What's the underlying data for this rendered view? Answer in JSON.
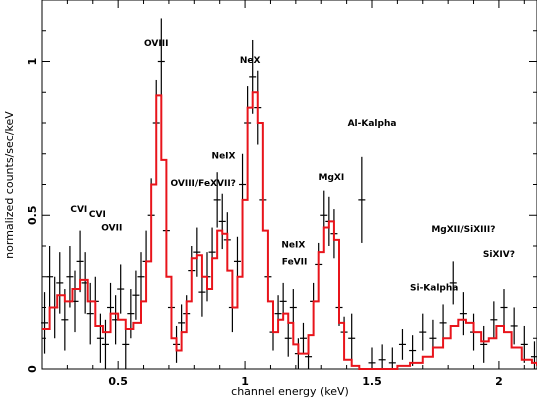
{
  "chart_data": {
    "type": "line",
    "xlabel": "channel energy (keV)",
    "ylabel": "normalized counts/sec/keV",
    "xlim": [
      0.2,
      2.15
    ],
    "ylim": [
      0,
      1.2
    ],
    "x_ticks": [
      0.5,
      1,
      1.5,
      2
    ],
    "x_tick_labels": [
      "0.5",
      "1",
      "1.5",
      "2"
    ],
    "y_ticks": [
      0,
      0.5,
      1
    ],
    "y_tick_labels": [
      "0",
      "0.5",
      "1"
    ],
    "colors": {
      "model": "#e8141b",
      "data": "#000000"
    },
    "annotations": [
      {
        "text": "CVI",
        "x": 0.345,
        "y": 0.51
      },
      {
        "text": "CVI",
        "x": 0.418,
        "y": 0.495
      },
      {
        "text": "OVII",
        "x": 0.475,
        "y": 0.45
      },
      {
        "text": "OVIII",
        "x": 0.65,
        "y": 1.05
      },
      {
        "text": "OVIII/FeXVII?",
        "x": 0.835,
        "y": 0.595
      },
      {
        "text": "NeIX",
        "x": 0.915,
        "y": 0.685
      },
      {
        "text": "NeX",
        "x": 1.02,
        "y": 0.995
      },
      {
        "text": "NeIX",
        "x": 1.19,
        "y": 0.395
      },
      {
        "text": "FeVII",
        "x": 1.195,
        "y": 0.34
      },
      {
        "text": "MgXI",
        "x": 1.34,
        "y": 0.615
      },
      {
        "text": "Al-Kalpha",
        "x": 1.5,
        "y": 0.79
      },
      {
        "text": "Si-Kalpha",
        "x": 1.745,
        "y": 0.255
      },
      {
        "text": "MgXII/SiXIII?",
        "x": 1.86,
        "y": 0.445
      },
      {
        "text": "SiXIV?",
        "x": 2.0,
        "y": 0.365
      }
    ],
    "model_x": [
      0.2,
      0.23,
      0.26,
      0.29,
      0.32,
      0.35,
      0.38,
      0.41,
      0.44,
      0.47,
      0.5,
      0.53,
      0.56,
      0.59,
      0.61,
      0.63,
      0.65,
      0.67,
      0.69,
      0.71,
      0.73,
      0.75,
      0.77,
      0.79,
      0.81,
      0.83,
      0.85,
      0.87,
      0.89,
      0.91,
      0.93,
      0.95,
      0.97,
      0.99,
      1.01,
      1.03,
      1.05,
      1.07,
      1.09,
      1.11,
      1.13,
      1.15,
      1.17,
      1.19,
      1.21,
      1.23,
      1.25,
      1.27,
      1.29,
      1.31,
      1.33,
      1.35,
      1.37,
      1.39,
      1.42,
      1.45,
      1.5,
      1.55,
      1.6,
      1.65,
      1.7,
      1.74,
      1.78,
      1.81,
      1.84,
      1.87,
      1.9,
      1.93,
      1.96,
      1.99,
      2.02,
      2.05,
      2.09,
      2.13,
      2.15
    ],
    "model_y": [
      0.13,
      0.2,
      0.24,
      0.22,
      0.26,
      0.29,
      0.22,
      0.14,
      0.12,
      0.18,
      0.16,
      0.13,
      0.15,
      0.22,
      0.35,
      0.6,
      0.89,
      0.68,
      0.3,
      0.1,
      0.06,
      0.12,
      0.22,
      0.36,
      0.37,
      0.3,
      0.26,
      0.36,
      0.45,
      0.44,
      0.32,
      0.2,
      0.3,
      0.55,
      0.85,
      0.9,
      0.8,
      0.45,
      0.22,
      0.12,
      0.16,
      0.18,
      0.15,
      0.08,
      0.05,
      0.05,
      0.11,
      0.22,
      0.38,
      0.46,
      0.48,
      0.42,
      0.15,
      0.03,
      0.01,
      0.0,
      0.0,
      0.0,
      0.01,
      0.02,
      0.04,
      0.07,
      0.1,
      0.14,
      0.16,
      0.15,
      0.12,
      0.09,
      0.1,
      0.14,
      0.12,
      0.07,
      0.03,
      0.02,
      0.01
    ],
    "data_x": [
      0.21,
      0.23,
      0.25,
      0.27,
      0.29,
      0.31,
      0.33,
      0.35,
      0.37,
      0.39,
      0.41,
      0.43,
      0.45,
      0.47,
      0.49,
      0.51,
      0.53,
      0.55,
      0.57,
      0.59,
      0.61,
      0.63,
      0.65,
      0.67,
      0.69,
      0.71,
      0.73,
      0.75,
      0.77,
      0.79,
      0.81,
      0.83,
      0.85,
      0.87,
      0.89,
      0.91,
      0.93,
      0.95,
      0.97,
      0.99,
      1.01,
      1.03,
      1.05,
      1.07,
      1.09,
      1.11,
      1.13,
      1.15,
      1.17,
      1.19,
      1.21,
      1.23,
      1.25,
      1.27,
      1.29,
      1.31,
      1.33,
      1.35,
      1.37,
      1.39,
      1.42,
      1.46,
      1.5,
      1.54,
      1.58,
      1.62,
      1.66,
      1.7,
      1.74,
      1.78,
      1.82,
      1.86,
      1.9,
      1.94,
      1.98,
      2.02,
      2.06,
      2.1,
      2.14
    ],
    "data_y": [
      0.15,
      0.3,
      0.2,
      0.28,
      0.16,
      0.3,
      0.22,
      0.35,
      0.28,
      0.18,
      0.22,
      0.1,
      0.08,
      0.2,
      0.16,
      0.26,
      0.08,
      0.18,
      0.24,
      0.3,
      0.35,
      0.5,
      0.8,
      1.0,
      0.45,
      0.2,
      0.08,
      0.15,
      0.18,
      0.32,
      0.38,
      0.25,
      0.3,
      0.38,
      0.55,
      0.48,
      0.42,
      0.2,
      0.35,
      0.6,
      0.8,
      0.95,
      0.85,
      0.55,
      0.3,
      0.12,
      0.18,
      0.22,
      0.1,
      0.2,
      0.05,
      0.1,
      0.04,
      0.22,
      0.34,
      0.5,
      0.48,
      0.44,
      0.2,
      0.12,
      0.1,
      0.55,
      0.02,
      0.03,
      0.02,
      0.08,
      0.06,
      0.12,
      0.1,
      0.15,
      0.28,
      0.18,
      0.12,
      0.08,
      0.16,
      0.2,
      0.14,
      0.08,
      0.04
    ],
    "data_err": [
      0.1,
      0.1,
      0.1,
      0.1,
      0.1,
      0.1,
      0.1,
      0.1,
      0.1,
      0.1,
      0.08,
      0.08,
      0.08,
      0.08,
      0.08,
      0.08,
      0.08,
      0.08,
      0.08,
      0.08,
      0.1,
      0.12,
      0.14,
      0.14,
      0.12,
      0.08,
      0.06,
      0.06,
      0.06,
      0.08,
      0.08,
      0.08,
      0.08,
      0.08,
      0.09,
      0.09,
      0.09,
      0.08,
      0.08,
      0.1,
      0.12,
      0.12,
      0.12,
      0.1,
      0.08,
      0.06,
      0.06,
      0.06,
      0.06,
      0.06,
      0.05,
      0.05,
      0.05,
      0.06,
      0.07,
      0.08,
      0.08,
      0.08,
      0.06,
      0.05,
      0.08,
      0.14,
      0.05,
      0.05,
      0.05,
      0.05,
      0.05,
      0.06,
      0.06,
      0.06,
      0.07,
      0.07,
      0.06,
      0.06,
      0.06,
      0.06,
      0.06,
      0.06,
      0.05
    ]
  }
}
